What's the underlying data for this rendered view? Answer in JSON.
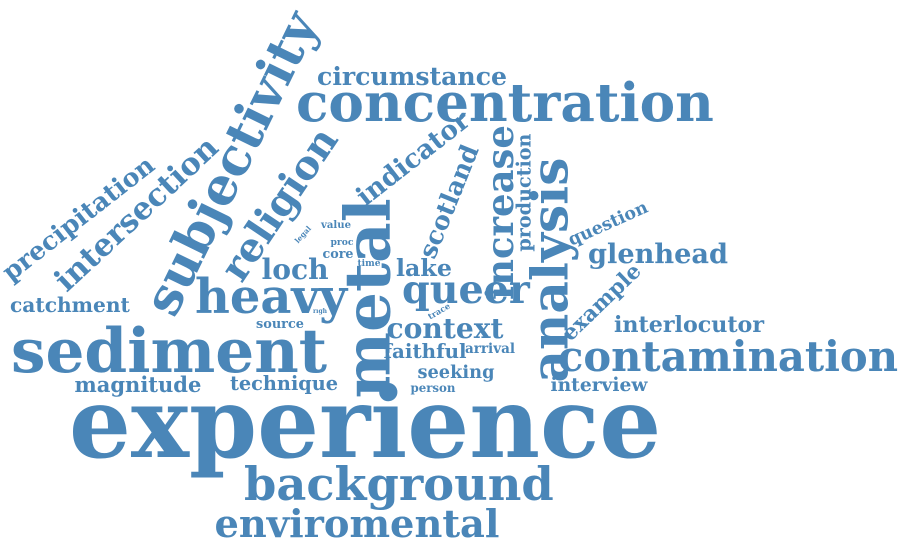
{
  "cloud": {
    "color": "#4a86b8",
    "background": "#ffffff",
    "words": [
      {
        "id": "experience",
        "text": "experience"
      },
      {
        "id": "background",
        "text": "background"
      },
      {
        "id": "enviromental",
        "text": "enviromental"
      },
      {
        "id": "sediment",
        "text": "sediment"
      },
      {
        "id": "contamination",
        "text": "contamination"
      },
      {
        "id": "concentration",
        "text": "concentration"
      },
      {
        "id": "metal",
        "text": "metal"
      },
      {
        "id": "analysis",
        "text": "analysis"
      },
      {
        "id": "subjectivity",
        "text": "subjectivity"
      },
      {
        "id": "religion",
        "text": "religion"
      },
      {
        "id": "intersection",
        "text": "intersection"
      },
      {
        "id": "precipitation",
        "text": "precipitation"
      },
      {
        "id": "heavy",
        "text": "heavy"
      },
      {
        "id": "queer",
        "text": "queer"
      },
      {
        "id": "increase",
        "text": "increase"
      },
      {
        "id": "scotland",
        "text": "scotland"
      },
      {
        "id": "indicator",
        "text": "indicator"
      },
      {
        "id": "circumstance",
        "text": "circumstance"
      },
      {
        "id": "production",
        "text": "production"
      },
      {
        "id": "glenhead",
        "text": "glenhead"
      },
      {
        "id": "question",
        "text": "question"
      },
      {
        "id": "example",
        "text": "example"
      },
      {
        "id": "interlocutor",
        "text": "interlocutor"
      },
      {
        "id": "interview",
        "text": "interview"
      },
      {
        "id": "catchment",
        "text": "catchment"
      },
      {
        "id": "loch",
        "text": "loch"
      },
      {
        "id": "lake",
        "text": "lake"
      },
      {
        "id": "context",
        "text": "context"
      },
      {
        "id": "faithful",
        "text": "faithful"
      },
      {
        "id": "arrival",
        "text": "arrival"
      },
      {
        "id": "seeking",
        "text": "seeking"
      },
      {
        "id": "person",
        "text": "person"
      },
      {
        "id": "magnitude",
        "text": "magnitude"
      },
      {
        "id": "technique",
        "text": "technique"
      },
      {
        "id": "source",
        "text": "source"
      },
      {
        "id": "value",
        "text": "value"
      },
      {
        "id": "legal",
        "text": "legal"
      },
      {
        "id": "proc",
        "text": "proc"
      },
      {
        "id": "core",
        "text": "core"
      },
      {
        "id": "time",
        "text": "time"
      },
      {
        "id": "trace",
        "text": "trace"
      },
      {
        "id": "righ",
        "text": "rıgh"
      }
    ]
  }
}
